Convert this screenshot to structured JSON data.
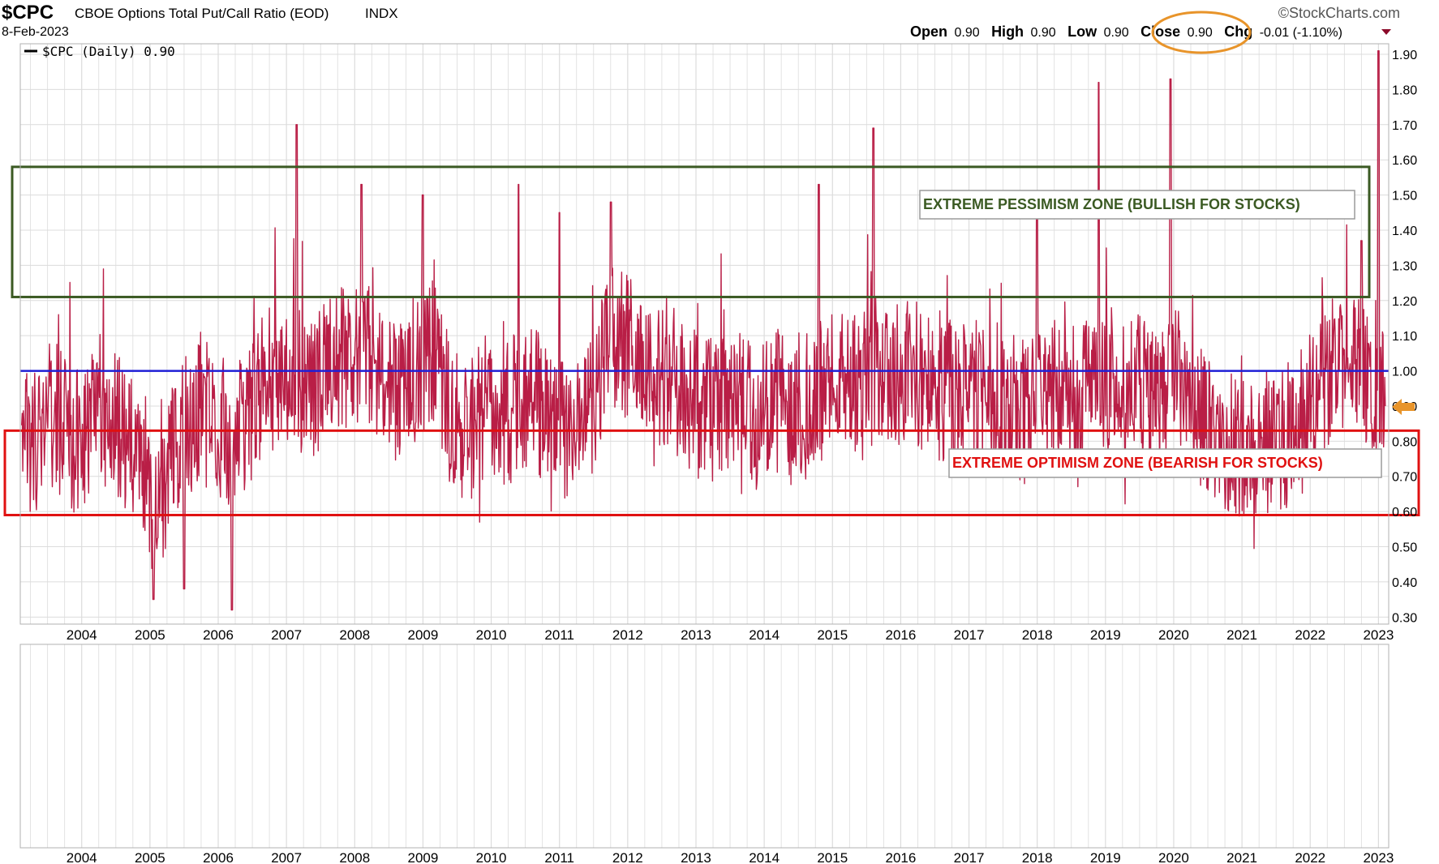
{
  "header": {
    "symbol": "$CPC",
    "name": "CBOE Options Total Put/Call Ratio (EOD)",
    "exchange": "INDX",
    "date": "8-Feb-2023",
    "brand": "©StockCharts.com",
    "open_label": "Open",
    "open_value": "0.90",
    "high_label": "High",
    "high_value": "0.90",
    "low_label": "Low",
    "low_value": "0.90",
    "close_label": "Close",
    "close_value": "0.90",
    "chg_label": "Chg",
    "chg_value": "-0.01 (-1.10%)"
  },
  "legend": {
    "text": "$CPC (Daily) 0.90"
  },
  "colors": {
    "series": "#b5123c",
    "series_dark": "#5a0a1e",
    "reference_line": "#1f1fd6",
    "pessimism_zone": "#3b5a23",
    "optimism_zone": "#e01010",
    "close_highlight": "#e8942a",
    "grid": "#dcdcdc"
  },
  "annotations": {
    "pessimism": {
      "label": "EXTREME PESSIMISM ZONE (BULLISH FOR STOCKS)",
      "y_range": [
        1.21,
        1.58
      ]
    },
    "optimism": {
      "label": "EXTREME OPTIMISM ZONE (BEARISH FOR STOCKS)",
      "y_range": [
        0.59,
        0.83
      ]
    },
    "reference_level": 1.0,
    "current_marker_value": 0.9
  },
  "chart_data": {
    "type": "line",
    "title": "$CPC CBOE Options Total Put/Call Ratio (EOD) INDX",
    "xlabel": "",
    "ylabel": "",
    "xlim": [
      2003.1,
      2023.15
    ],
    "ylim": [
      0.28,
      1.93
    ],
    "x_ticks": [
      "2004",
      "2005",
      "2006",
      "2007",
      "2008",
      "2009",
      "2010",
      "2011",
      "2012",
      "2013",
      "2014",
      "2015",
      "2016",
      "2017",
      "2018",
      "2019",
      "2020",
      "2021",
      "2022",
      "2023"
    ],
    "y_ticks": [
      "1.90",
      "1.80",
      "1.70",
      "1.60",
      "1.50",
      "1.40",
      "1.30",
      "1.20",
      "1.10",
      "1.00",
      "0.90",
      "0.80",
      "0.70",
      "0.60",
      "0.50",
      "0.40",
      "0.30"
    ],
    "grid": true,
    "legend_position": "top-left",
    "series": [
      {
        "name": "$CPC (Daily)",
        "points": [
          [
            2003.1,
            0.85
          ],
          [
            2003.35,
            0.78
          ],
          [
            2003.6,
            0.88
          ],
          [
            2003.85,
            0.8
          ],
          [
            2004.1,
            0.84
          ],
          [
            2004.35,
            0.86
          ],
          [
            2004.6,
            0.83
          ],
          [
            2004.85,
            0.76
          ],
          [
            2005.0,
            0.66
          ],
          [
            2005.1,
            0.6
          ],
          [
            2005.3,
            0.72
          ],
          [
            2005.5,
            0.85
          ],
          [
            2005.75,
            0.88
          ],
          [
            2006.0,
            0.86
          ],
          [
            2006.2,
            0.8
          ],
          [
            2006.45,
            0.88
          ],
          [
            2006.7,
            1.0
          ],
          [
            2006.9,
            0.96
          ],
          [
            2007.15,
            0.98
          ],
          [
            2007.4,
            0.93
          ],
          [
            2007.65,
            1.02
          ],
          [
            2007.9,
            1.05
          ],
          [
            2008.15,
            1.06
          ],
          [
            2008.4,
            0.98
          ],
          [
            2008.65,
            0.95
          ],
          [
            2008.9,
            1.0
          ],
          [
            2009.15,
            1.05
          ],
          [
            2009.4,
            0.9
          ],
          [
            2009.65,
            0.82
          ],
          [
            2009.9,
            0.86
          ],
          [
            2010.15,
            0.84
          ],
          [
            2010.4,
            0.93
          ],
          [
            2010.65,
            0.92
          ],
          [
            2010.9,
            0.83
          ],
          [
            2011.15,
            0.82
          ],
          [
            2011.4,
            0.85
          ],
          [
            2011.65,
            1.05
          ],
          [
            2011.9,
            1.12
          ],
          [
            2012.15,
            1.0
          ],
          [
            2012.4,
            0.96
          ],
          [
            2012.65,
            0.98
          ],
          [
            2012.9,
            0.93
          ],
          [
            2013.15,
            0.88
          ],
          [
            2013.4,
            0.91
          ],
          [
            2013.65,
            0.9
          ],
          [
            2013.9,
            0.86
          ],
          [
            2014.15,
            0.92
          ],
          [
            2014.4,
            0.88
          ],
          [
            2014.65,
            0.93
          ],
          [
            2014.9,
            0.95
          ],
          [
            2015.15,
            0.97
          ],
          [
            2015.4,
            0.94
          ],
          [
            2015.65,
            1.03
          ],
          [
            2015.9,
            0.98
          ],
          [
            2016.15,
            1.02
          ],
          [
            2016.4,
            0.95
          ],
          [
            2016.65,
            0.95
          ],
          [
            2016.9,
            0.92
          ],
          [
            2017.15,
            0.95
          ],
          [
            2017.4,
            0.93
          ],
          [
            2017.65,
            0.9
          ],
          [
            2017.9,
            0.88
          ],
          [
            2018.15,
            0.93
          ],
          [
            2018.4,
            0.95
          ],
          [
            2018.65,
            0.92
          ],
          [
            2018.9,
            1.0
          ],
          [
            2019.15,
            0.96
          ],
          [
            2019.4,
            0.98
          ],
          [
            2019.65,
            0.93
          ],
          [
            2019.9,
            0.95
          ],
          [
            2020.15,
            1.0
          ],
          [
            2020.4,
            0.86
          ],
          [
            2020.65,
            0.8
          ],
          [
            2020.9,
            0.78
          ],
          [
            2021.15,
            0.76
          ],
          [
            2021.4,
            0.8
          ],
          [
            2021.65,
            0.82
          ],
          [
            2021.9,
            0.86
          ],
          [
            2022.15,
            0.96
          ],
          [
            2022.4,
            1.02
          ],
          [
            2022.65,
            1.0
          ],
          [
            2022.9,
            0.98
          ],
          [
            2023.1,
            0.9
          ]
        ]
      }
    ]
  }
}
